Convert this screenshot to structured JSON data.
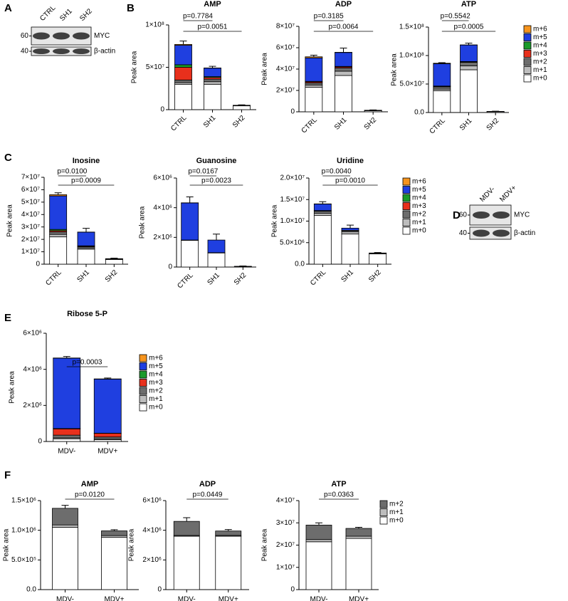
{
  "panel_labels": [
    "A",
    "B",
    "C",
    "D",
    "E",
    "F"
  ],
  "blots": [
    {
      "lanes": [
        "CTRL",
        "SH1",
        "SH2"
      ],
      "rows": [
        {
          "marker": "60",
          "label": "MYC"
        },
        {
          "marker": "40",
          "label": "β-actin"
        }
      ]
    },
    {
      "lanes": [
        "MDV-",
        "MDV+"
      ],
      "rows": [
        {
          "marker": "60",
          "label": "MYC"
        },
        {
          "marker": "40",
          "label": "β-actin"
        }
      ]
    }
  ],
  "chart_data": [
    {
      "type": "stacked_bar",
      "title": "AMP",
      "ylabel": "Peak area",
      "categories": [
        "CTRL",
        "SH1",
        "SH2"
      ],
      "ylim": [
        0,
        100000000.0
      ],
      "yticks": [
        0,
        {
          "value": 50000000.0,
          "label": "5×10⁷"
        },
        {
          "value": 100000000.0,
          "label": "1×10⁸"
        }
      ],
      "series": [
        {
          "name": "m+0",
          "color": "#ffffff",
          "values": [
            30000000.0,
            30000000.0,
            4500000.0
          ]
        },
        {
          "name": "m+1",
          "color": "#bdbdbd",
          "values": [
            2000000.0,
            3000000.0,
            300000.0
          ]
        },
        {
          "name": "m+2",
          "color": "#6d6d6d",
          "values": [
            3000000.0,
            3000000.0,
            200000.0
          ]
        },
        {
          "name": "m+3",
          "color": "#e8301c",
          "values": [
            15000000.0,
            2000000.0,
            50000.0
          ]
        },
        {
          "name": "m+4",
          "color": "#1a9a2a",
          "values": [
            3000000.0,
            1000000.0,
            50000.0
          ]
        },
        {
          "name": "m+5",
          "color": "#1f3fe0",
          "values": [
            23000000.0,
            10000000.0,
            100000.0
          ]
        },
        {
          "name": "m+6",
          "color": "#f7941d",
          "values": [
            1000000.0,
            200000.0,
            0
          ]
        }
      ],
      "errors": [
        4000000.0,
        2000000.0,
        500000.0
      ],
      "annotations": [
        {
          "text": "p=0.7784",
          "between": [
            "CTRL",
            "SH1"
          ]
        },
        {
          "text": "p=0.0051",
          "between": [
            "CTRL",
            "SH2"
          ]
        }
      ]
    },
    {
      "type": "stacked_bar",
      "title": "ADP",
      "ylabel": "Peak area",
      "categories": [
        "CTRL",
        "SH1",
        "SH2"
      ],
      "ylim": [
        0,
        80000000.0
      ],
      "yticks": [
        0,
        {
          "value": 20000000.0,
          "label": "2×10⁷"
        },
        {
          "value": 40000000.0,
          "label": "4×10⁷"
        },
        {
          "value": 60000000.0,
          "label": "6×10⁷"
        },
        {
          "value": 80000000.0,
          "label": "8×10⁷"
        }
      ],
      "series": [
        {
          "name": "m+0",
          "color": "#ffffff",
          "values": [
            23000000.0,
            34000000.0,
            1000000.0
          ]
        },
        {
          "name": "m+1",
          "color": "#bdbdbd",
          "values": [
            2000000.0,
            4000000.0,
            200000.0
          ]
        },
        {
          "name": "m+2",
          "color": "#6d6d6d",
          "values": [
            2000000.0,
            3000000.0,
            100000.0
          ]
        },
        {
          "name": "m+3",
          "color": "#e8301c",
          "values": [
            1000000.0,
            1000000.0,
            50000.0
          ]
        },
        {
          "name": "m+4",
          "color": "#1a9a2a",
          "values": [
            500000.0,
            500000.0,
            0
          ]
        },
        {
          "name": "m+5",
          "color": "#1f3fe0",
          "values": [
            22000000.0,
            13000000.0,
            100000.0
          ]
        },
        {
          "name": "m+6",
          "color": "#f7941d",
          "values": [
            1000000.0,
            200000.0,
            0
          ]
        }
      ],
      "errors": [
        1500000.0,
        4000000.0,
        300000.0
      ],
      "annotations": [
        {
          "text": "p=0.3185",
          "between": [
            "CTRL",
            "SH1"
          ]
        },
        {
          "text": "p=0.0064",
          "between": [
            "CTRL",
            "SH2"
          ]
        }
      ]
    },
    {
      "type": "stacked_bar",
      "title": "ATP",
      "ylabel": "Peak area",
      "categories": [
        "CTRL",
        "SH1",
        "SH2"
      ],
      "legend": true,
      "ylim": [
        0,
        150000000.0
      ],
      "yticks": [
        {
          "value": 0,
          "label": "0.0"
        },
        {
          "value": 50000000.0,
          "label": "5.0×10⁷"
        },
        {
          "value": 100000000.0,
          "label": "1.0×10⁸"
        },
        {
          "value": 150000000.0,
          "label": "1.5×10⁸"
        }
      ],
      "series": [
        {
          "name": "m+0",
          "color": "#ffffff",
          "values": [
            38000000.0,
            75000000.0,
            1500000.0
          ]
        },
        {
          "name": "m+1",
          "color": "#bdbdbd",
          "values": [
            3000000.0,
            7000000.0,
            200000.0
          ]
        },
        {
          "name": "m+2",
          "color": "#6d6d6d",
          "values": [
            4000000.0,
            6000000.0,
            100000.0
          ]
        },
        {
          "name": "m+3",
          "color": "#e8301c",
          "values": [
            1000000.0,
            1000000.0,
            0
          ]
        },
        {
          "name": "m+4",
          "color": "#1a9a2a",
          "values": [
            500000.0,
            500000.0,
            0
          ]
        },
        {
          "name": "m+5",
          "color": "#1f3fe0",
          "values": [
            39000000.0,
            29000000.0,
            200000.0
          ]
        },
        {
          "name": "m+6",
          "color": "#f7941d",
          "values": [
            1000000.0,
            200000.0,
            0
          ]
        }
      ],
      "errors": [
        1000000.0,
        3000000.0,
        300000.0
      ],
      "annotations": [
        {
          "text": "p=0.5542",
          "between": [
            "CTRL",
            "SH1"
          ]
        },
        {
          "text": "p=0.0005",
          "between": [
            "CTRL",
            "SH2"
          ]
        }
      ]
    },
    {
      "type": "stacked_bar",
      "title": "Inosine",
      "ylabel": "Peak area",
      "categories": [
        "CTRL",
        "SH1",
        "SH2"
      ],
      "ylim": [
        0,
        70000000.0
      ],
      "yticks": [
        0,
        {
          "value": 10000000.0,
          "label": "1×10⁷"
        },
        {
          "value": 20000000.0,
          "label": "2×10⁷"
        },
        {
          "value": 30000000.0,
          "label": "3×10⁷"
        },
        {
          "value": 40000000.0,
          "label": "4×10⁷"
        },
        {
          "value": 50000000.0,
          "label": "5×10⁷"
        },
        {
          "value": 60000000.0,
          "label": "6×10⁷"
        },
        {
          "value": 70000000.0,
          "label": "7×10⁷"
        }
      ],
      "series": [
        {
          "name": "m+0",
          "color": "#ffffff",
          "values": [
            22000000.0,
            12000000.0,
            3800000.0
          ]
        },
        {
          "name": "m+1",
          "color": "#bdbdbd",
          "values": [
            2000000.0,
            1000000.0,
            200000.0
          ]
        },
        {
          "name": "m+2",
          "color": "#6d6d6d",
          "values": [
            2000000.0,
            1000000.0,
            100000.0
          ]
        },
        {
          "name": "m+3",
          "color": "#e8301c",
          "values": [
            1000000.0,
            500000.0,
            50000.0
          ]
        },
        {
          "name": "m+4",
          "color": "#1a9a2a",
          "values": [
            1000000.0,
            300000.0,
            0
          ]
        },
        {
          "name": "m+5",
          "color": "#1f3fe0",
          "values": [
            27000000.0,
            11000000.0,
            300000.0
          ]
        },
        {
          "name": "m+6",
          "color": "#f7941d",
          "values": [
            1000000.0,
            100000.0,
            0
          ]
        }
      ],
      "errors": [
        1500000.0,
        3000000.0,
        400000.0
      ],
      "annotations": [
        {
          "text": "p=0.0100",
          "between": [
            "CTRL",
            "SH1"
          ]
        },
        {
          "text": "p=0.0009",
          "between": [
            "CTRL",
            "SH2"
          ]
        }
      ]
    },
    {
      "type": "stacked_bar",
      "title": "Guanosine",
      "ylabel": "Peak area",
      "categories": [
        "CTRL",
        "SH1",
        "SH2"
      ],
      "ylim": [
        0,
        6000000.0
      ],
      "yticks": [
        0,
        {
          "value": 2000000.0,
          "label": "2×10⁶"
        },
        {
          "value": 4000000.0,
          "label": "4×10⁶"
        },
        {
          "value": 6000000.0,
          "label": "6×10⁶"
        }
      ],
      "series": [
        {
          "name": "m+0",
          "color": "#ffffff",
          "values": [
            1800000.0,
            950000.0,
            30000.0
          ]
        },
        {
          "name": "m+1",
          "color": "#bdbdbd",
          "values": [
            10000.0,
            10000.0,
            0
          ]
        },
        {
          "name": "m+2",
          "color": "#6d6d6d",
          "values": [
            10000.0,
            10000.0,
            0
          ]
        },
        {
          "name": "m+3",
          "color": "#e8301c",
          "values": [
            0,
            0,
            0
          ]
        },
        {
          "name": "m+4",
          "color": "#1a9a2a",
          "values": [
            0,
            0,
            0
          ]
        },
        {
          "name": "m+5",
          "color": "#1f3fe0",
          "values": [
            2500000.0,
            850000.0,
            20000.0
          ]
        },
        {
          "name": "m+6",
          "color": "#f7941d",
          "values": [
            10000.0,
            0,
            0
          ]
        }
      ],
      "errors": [
        400000.0,
        400000.0,
        20000.0
      ],
      "annotations": [
        {
          "text": "p=0.0167",
          "between": [
            "CTRL",
            "SH1"
          ]
        },
        {
          "text": "p=0.0023",
          "between": [
            "CTRL",
            "SH2"
          ]
        }
      ]
    },
    {
      "type": "stacked_bar",
      "title": "Uridine",
      "ylabel": "Peak area",
      "categories": [
        "CTRL",
        "SH1",
        "SH2"
      ],
      "legend": true,
      "ylim": [
        0,
        20000000.0
      ],
      "yticks": [
        {
          "value": 0,
          "label": "0.0"
        },
        {
          "value": 5000000.0,
          "label": "5.0×10⁶"
        },
        {
          "value": 10000000.0,
          "label": "1.0×10⁷"
        },
        {
          "value": 15000000.0,
          "label": "1.5×10⁷"
        },
        {
          "value": 20000000.0,
          "label": "2.0×10⁷"
        }
      ],
      "series": [
        {
          "name": "m+0",
          "color": "#ffffff",
          "values": [
            11300000.0,
            7000000.0,
            2400000.0
          ]
        },
        {
          "name": "m+1",
          "color": "#bdbdbd",
          "values": [
            500000.0,
            500000.0,
            100000.0
          ]
        },
        {
          "name": "m+2",
          "color": "#6d6d6d",
          "values": [
            500000.0,
            300000.0,
            50000.0
          ]
        },
        {
          "name": "m+3",
          "color": "#e8301c",
          "values": [
            100000.0,
            50000.0,
            0
          ]
        },
        {
          "name": "m+4",
          "color": "#1a9a2a",
          "values": [
            50000.0,
            20000.0,
            0
          ]
        },
        {
          "name": "m+5",
          "color": "#1f3fe0",
          "values": [
            1500000.0,
            500000.0,
            50000.0
          ]
        },
        {
          "name": "m+6",
          "color": "#f7941d",
          "values": [
            50000.0,
            0,
            0
          ]
        }
      ],
      "errors": [
        500000.0,
        700000.0,
        100000.0
      ],
      "annotations": [
        {
          "text": "p=0.0040",
          "between": [
            "CTRL",
            "SH1"
          ]
        },
        {
          "text": "p=0.0010",
          "between": [
            "CTRL",
            "SH2"
          ]
        }
      ]
    },
    {
      "type": "stacked_bar",
      "title": "Ribose 5-P",
      "ylabel": "Peak area",
      "categories": [
        "MDV-",
        "MDV+"
      ],
      "legend": true,
      "ylim": [
        0,
        6000000.0
      ],
      "yticks": [
        0,
        {
          "value": 2000000.0,
          "label": "2×10⁶"
        },
        {
          "value": 4000000.0,
          "label": "4×10⁶"
        },
        {
          "value": 6000000.0,
          "label": "6×10⁶"
        }
      ],
      "series": [
        {
          "name": "m+0",
          "color": "#ffffff",
          "values": [
            150000.0,
            100000.0
          ]
        },
        {
          "name": "m+1",
          "color": "#bdbdbd",
          "values": [
            50000.0,
            50000.0
          ]
        },
        {
          "name": "m+2",
          "color": "#6d6d6d",
          "values": [
            150000.0,
            100000.0
          ]
        },
        {
          "name": "m+3",
          "color": "#e8301c",
          "values": [
            350000.0,
            200000.0
          ]
        },
        {
          "name": "m+4",
          "color": "#1a9a2a",
          "values": [
            20000.0,
            10000.0
          ]
        },
        {
          "name": "m+5",
          "color": "#1f3fe0",
          "values": [
            3900000.0,
            3000000.0
          ]
        },
        {
          "name": "m+6",
          "color": "#f7941d",
          "values": [
            10000.0,
            10000.0
          ]
        }
      ],
      "errors": [
        80000.0,
        50000.0
      ],
      "annotations": [
        {
          "text": "p=0.0003",
          "between": [
            "MDV-",
            "MDV+"
          ]
        }
      ]
    },
    {
      "type": "stacked_bar",
      "title": "AMP",
      "ylabel": "Peak area",
      "categories": [
        "MDV-",
        "MDV+"
      ],
      "ylim": [
        0,
        1500000.0
      ],
      "yticks": [
        {
          "value": 0,
          "label": "0.0"
        },
        {
          "value": 500000.0,
          "label": "5.0×10⁵"
        },
        {
          "value": 1000000.0,
          "label": "1.0×10⁶"
        },
        {
          "value": 1500000.0,
          "label": "1.5×10⁶"
        }
      ],
      "series": [
        {
          "name": "m+0",
          "color": "#ffffff",
          "values": [
            1050000.0,
            880000.0
          ]
        },
        {
          "name": "m+1",
          "color": "#bdbdbd",
          "values": [
            40000.0,
            30000.0
          ]
        },
        {
          "name": "m+2",
          "color": "#6d6d6d",
          "values": [
            280000.0,
            80000.0
          ]
        }
      ],
      "errors": [
        50000.0,
        20000.0
      ],
      "annotations": [
        {
          "text": "p=0.0120",
          "between": [
            "MDV-",
            "MDV+"
          ]
        }
      ]
    },
    {
      "type": "stacked_bar",
      "title": "ADP",
      "ylabel": "Peak area",
      "categories": [
        "MDV-",
        "MDV+"
      ],
      "ylim": [
        0,
        6000000.0
      ],
      "yticks": [
        0,
        {
          "value": 2000000.0,
          "label": "2×10⁶"
        },
        {
          "value": 4000000.0,
          "label": "4×10⁶"
        },
        {
          "value": 6000000.0,
          "label": "6×10⁶"
        }
      ],
      "series": [
        {
          "name": "m+0",
          "color": "#ffffff",
          "values": [
            3600000.0,
            3600000.0
          ]
        },
        {
          "name": "m+1",
          "color": "#bdbdbd",
          "values": [
            50000.0,
            50000.0
          ]
        },
        {
          "name": "m+2",
          "color": "#6d6d6d",
          "values": [
            950000.0,
            300000.0
          ]
        }
      ],
      "errors": [
        250000.0,
        100000.0
      ],
      "annotations": [
        {
          "text": "p=0.0449",
          "between": [
            "MDV-",
            "MDV+"
          ]
        }
      ]
    },
    {
      "type": "stacked_bar",
      "title": "ATP",
      "ylabel": "Peak area",
      "categories": [
        "MDV-",
        "MDV+"
      ],
      "legend": true,
      "ylim": [
        0,
        40000000.0
      ],
      "yticks": [
        0,
        {
          "value": 10000000.0,
          "label": "1×10⁷"
        },
        {
          "value": 20000000.0,
          "label": "2×10⁷"
        },
        {
          "value": 30000000.0,
          "label": "3×10⁷"
        },
        {
          "value": 40000000.0,
          "label": "4×10⁷"
        }
      ],
      "series": [
        {
          "name": "m+0",
          "color": "#ffffff",
          "values": [
            21500000.0,
            23000000.0
          ]
        },
        {
          "name": "m+1",
          "color": "#bdbdbd",
          "values": [
            1000000.0,
            1000000.0
          ]
        },
        {
          "name": "m+2",
          "color": "#6d6d6d",
          "values": [
            6500000.0,
            3500000.0
          ]
        }
      ],
      "errors": [
        1000000.0,
        500000.0
      ],
      "annotations": [
        {
          "text": "p=0.0363",
          "between": [
            "MDV-",
            "MDV+"
          ]
        }
      ]
    }
  ]
}
